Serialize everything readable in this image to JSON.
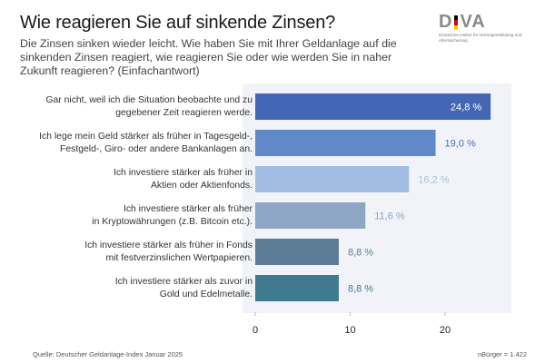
{
  "header": {
    "title": "Wie reagieren Sie auf sinkende Zinsen?",
    "subtitle": "Die Zinsen sinken wieder leicht. Wie haben Sie mit Ihrer Geldanlage auf die sinkenden Zinsen reagiert, wie reagieren Sie oder wie werden Sie in naher Zukunft reagieren? (Einfachantwort)"
  },
  "logo": {
    "word_left": "D",
    "word_right": "VA",
    "subtext": "Deutsches Institut für Vermögensbildung und Alterssicherung",
    "flag_colors": [
      "#000000",
      "#dd0000",
      "#ffce00"
    ]
  },
  "footer": {
    "source": "Quelle: Deutscher Geldanlage-Index Januar 2025",
    "sample": "nBürger = 1.422"
  },
  "chart_data": {
    "type": "bar",
    "orientation": "horizontal",
    "title": "Wie reagieren Sie auf sinkende Zinsen?",
    "xlabel": "",
    "ylabel": "",
    "xlim": [
      0,
      26
    ],
    "xticks": [
      0,
      10,
      20
    ],
    "grid": false,
    "categories": [
      [
        "Gar nicht, weil ich die Situation beobachte und zu",
        "gegebener Zeit reagieren werde."
      ],
      [
        "Ich lege mein Geld stärker als früher in Tagesgeld-,",
        "Festgeld-, Giro- oder andere Bankanlagen an."
      ],
      [
        "Ich investiere stärker als früher in",
        "Aktien oder Aktienfonds."
      ],
      [
        "Ich investiere stärker als früher",
        "in Kryptowährungen (z.B. Bitcoin etc.)."
      ],
      [
        "Ich investiere stärker als früher in Fonds",
        "mit festverzinslichen Wertpapieren."
      ],
      [
        "Ich investiere stärker als zuvor in",
        "Gold und Edelmetalle."
      ]
    ],
    "values": [
      24.8,
      19.0,
      16.2,
      11.6,
      8.8,
      8.8
    ],
    "value_labels": [
      "24,8 %",
      "19,0 %",
      "16,2 %",
      "11,6 %",
      "8,8 %",
      "8,8 %"
    ],
    "bar_colors": [
      "#4467b5",
      "#6189c9",
      "#a2bde2",
      "#8fa5c4",
      "#5c7b94",
      "#3f7a8f"
    ],
    "label_colors": [
      "#ffffff",
      "#4a6fb5",
      "#a9bedc",
      "#8fa5c4",
      "#5c7b94",
      "#3f7a8f"
    ],
    "label_inside": [
      true,
      false,
      false,
      false,
      false,
      false
    ]
  }
}
